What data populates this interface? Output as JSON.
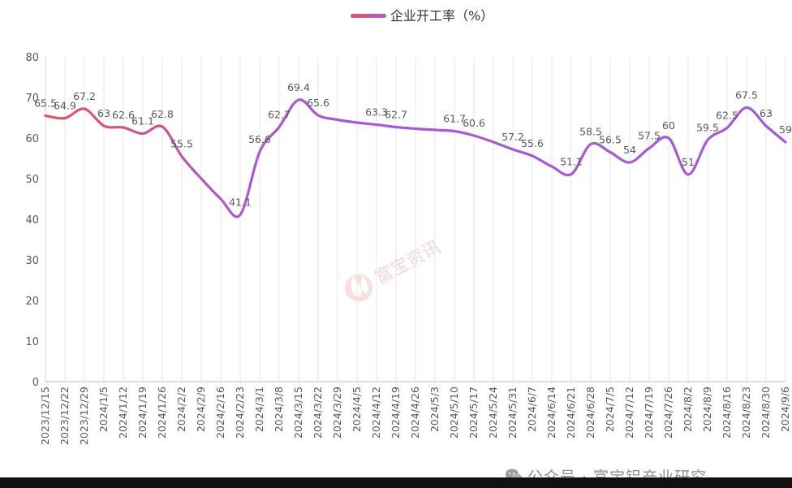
{
  "chart_data": {
    "type": "line",
    "title": "",
    "legend": {
      "position": "top-center",
      "entries": [
        "企业开工率（%）"
      ]
    },
    "ylim": [
      0,
      80
    ],
    "yticks": [
      0,
      10,
      20,
      30,
      40,
      50,
      60,
      70,
      80
    ],
    "grid": {
      "vertical": true,
      "horizontal": false
    },
    "smooth": true,
    "series": [
      {
        "name": "企业开工率（%）",
        "color_start": "#e8535a",
        "color_end": "#a85ad6"
      }
    ],
    "categories": [
      "2023/12/15",
      "2023/12/22",
      "2023/12/29",
      "2024/1/5",
      "2024/1/12",
      "2024/1/19",
      "2024/1/26",
      "2024/2/2",
      "2024/2/9",
      "2024/2/16",
      "2024/2/23",
      "2024/3/1",
      "2024/3/8",
      "2024/3/15",
      "2024/3/22",
      "2024/3/29",
      "2024/4/5",
      "2024/4/12",
      "2024/4/19",
      "2024/4/26",
      "2024/5/3",
      "2024/5/10",
      "2024/5/17",
      "2024/5/24",
      "2024/5/31",
      "2024/6/7",
      "2024/6/14",
      "2024/6/21",
      "2024/6/28",
      "2024/7/5",
      "2024/7/12",
      "2024/7/19",
      "2024/7/26",
      "2024/8/2",
      "2024/8/9",
      "2024/8/16",
      "2024/8/23",
      "2024/8/30",
      "2024/9/6"
    ],
    "values": [
      65.5,
      64.9,
      67.2,
      63,
      62.6,
      61.1,
      62.8,
      55.5,
      50,
      45,
      41.1,
      56.6,
      62.7,
      69.4,
      65.6,
      64.5,
      63.8,
      63.3,
      62.7,
      62.3,
      62,
      61.7,
      60.6,
      59,
      57.2,
      55.6,
      53,
      51.1,
      58.5,
      56.5,
      54,
      57.5,
      60,
      51,
      59.5,
      62.5,
      67.5,
      63,
      59
    ],
    "data_labels": [
      "65.5",
      "64.9",
      "67.2",
      "63",
      "62.6",
      "61.1",
      "62.8",
      "55.5",
      "",
      "",
      "41.1",
      "56.6",
      "62.7",
      "69.4",
      "65.6",
      "",
      "",
      "63.3",
      "62.7",
      "",
      "",
      "61.7",
      "60.6",
      "",
      "57.2",
      "55.6",
      "",
      "51.1",
      "58.5",
      "56.5",
      "54",
      "57.5",
      "60",
      "51",
      "59.5",
      "62.5",
      "67.5",
      "63",
      "59"
    ]
  },
  "watermark": {
    "center_text": "富宝资讯",
    "account_text": "公众号 · 富宝铝产业研究"
  }
}
